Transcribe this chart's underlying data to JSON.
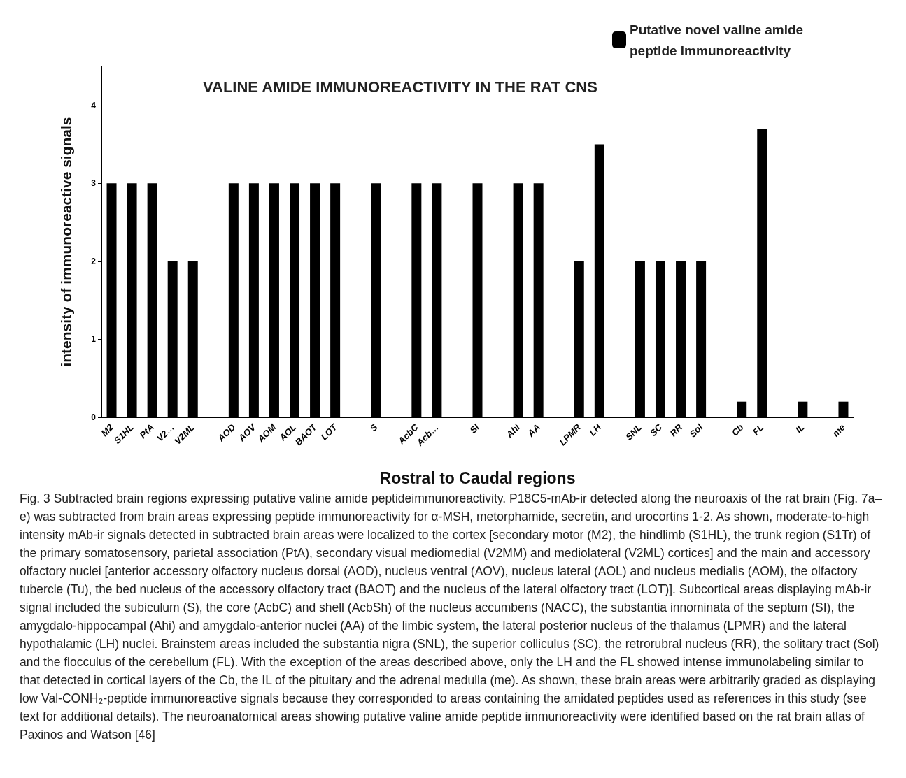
{
  "chart_data": {
    "type": "bar",
    "title": "VALINE AMIDE IMMUNOREACTIVITY IN THE RAT CNS",
    "xlabel": "Rostral to Caudal regions",
    "ylabel": "intensity of immunoreactive signals",
    "categories": [
      "M2",
      "S1HL",
      "PtA",
      "V2…",
      "V2ML",
      null,
      "AOD",
      "AOV",
      "AOM",
      "AOL",
      "BAOT",
      "LOT",
      null,
      "S",
      null,
      "AcbC",
      "Acb…",
      null,
      "SI",
      null,
      "Ahi",
      "AA",
      null,
      "LPMR",
      "LH",
      null,
      "SNL",
      "SC",
      "RR",
      "Sol",
      null,
      "Cb",
      "FL",
      null,
      "IL",
      null,
      "me"
    ],
    "series": [
      {
        "name": "Putative novel valine amide peptide immunoreactivity",
        "color": "#000000",
        "values": [
          3,
          3,
          3,
          2,
          2,
          null,
          3,
          3,
          3,
          3,
          3,
          3,
          null,
          3,
          null,
          3,
          3,
          null,
          3,
          null,
          3,
          3,
          null,
          2,
          3.5,
          null,
          2,
          2,
          2,
          2,
          null,
          0.2,
          3.7,
          null,
          0.2,
          null,
          0.2
        ]
      }
    ],
    "ylim": [
      0,
      4.5
    ],
    "yticks": [
      0,
      1,
      2,
      3,
      4
    ],
    "grid": false,
    "legend": "top right",
    "annotations": [
      "Fig. 3  Subtracted brain regions expressing putative valine amide peptideimmunoreactivity. P18C5-mAb-ir detected along the neuroaxis of the rat brain (Fig. 7a–e) was subtracted from brain areas expressing peptide immunoreactivity for α-MSH, metorphamide, secretin, and urocortins 1-2. As shown, moderate-to-high intensity mAb-ir signals detected in subtracted brain areas were localized to the cortex [secondary motor (M2), the hindlimb (S1HL), the trunk region (S1Tr) of the primary somatosensory, parietal association (PtA), secondary visual mediomedial (V2MM) and mediolateral (V2ML) cortices] and the main and accessory olfactory nuclei [anterior accessory olfactory nucleus dorsal (AOD), nucleus ventral (AOV), nucleus lateral (AOL) and nucleus medialis (AOM), the olfactory tubercle (Tu), the bed nucleus of the accessory olfactory tract (BAOT) and the nucleus of the lateral olfactory tract (LOT)]. Subcortical areas displaying mAb-ir signal included the subiculum (S), the core (AcbC) and shell (AcbSh) of the nucleus accumbens (NACC), the substantia innominata of the septum (SI), the amygdalo-hippocampal (Ahi) and amygdalo-anterior nuclei (AA) of the limbic system, the lateral posterior nucleus of the thalamus (LPMR) and the lateral hypothalamic (LH) nuclei. Brainstem areas included the substantia nigra (SNL), the superior colliculus (SC), the retrorubral nucleus (RR), the solitary tract (Sol) and the flocculus of the cerebellum (FL). With the exception of the areas described above, only the LH and the FL showed intense immunolabeling similar to that detected in cortical layers of the Cb, the IL of the pituitary and the adrenal medulla (me). As shown, these brain areas were arbitrarily graded as displaying low Val-CONH₂-peptide immunoreactive signals because they corresponded to areas containing the amidated peptides used as references in this study (see text for additional details). The neuroanatomical areas showing putative valine amide peptide immunoreactivity were identified based on the rat brain atlas of Paxinos and Watson [46]"
    ]
  }
}
